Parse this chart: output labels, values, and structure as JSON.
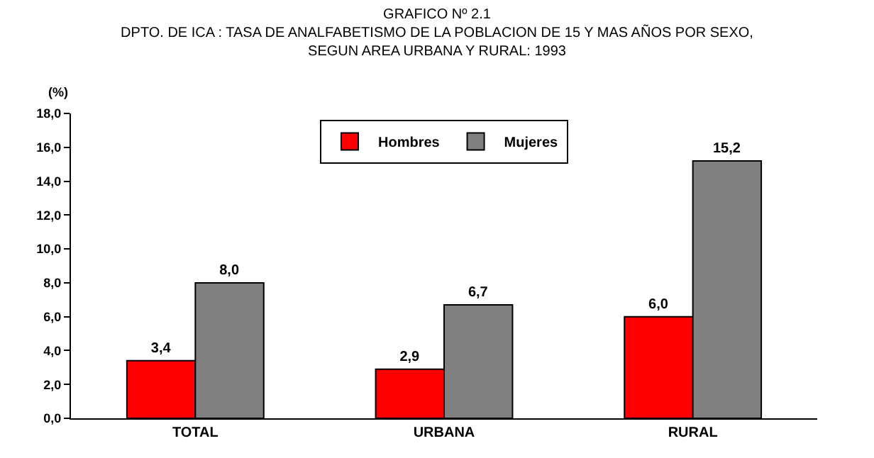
{
  "chart_data": {
    "type": "bar",
    "title": "GRAFICO Nº 2.1\nDPTO. DE ICA : TASA DE ANALFABETISMO DE LA POBLACION DE 15 Y MAS AÑOS POR SEXO,\nSEGUN AREA URBANA Y RURAL: 1993",
    "ylabel": "(%)",
    "categories": [
      "TOTAL",
      "URBANA",
      "RURAL"
    ],
    "series": [
      {
        "name": "Hombres",
        "color": "#ff0000",
        "values": [
          3.4,
          2.9,
          6.0
        ],
        "value_labels": [
          "3,4",
          "2,9",
          "6,0"
        ]
      },
      {
        "name": "Mujeres",
        "color": "#808080",
        "values": [
          8.0,
          6.7,
          15.2
        ],
        "value_labels": [
          "8,0",
          "6,7",
          "15,2"
        ]
      }
    ],
    "ylim": [
      0,
      18
    ],
    "yticks": [
      {
        "value": 0,
        "label": "0,0"
      },
      {
        "value": 2,
        "label": "2,0"
      },
      {
        "value": 4,
        "label": "4,0"
      },
      {
        "value": 6,
        "label": "6,0"
      },
      {
        "value": 8,
        "label": "8,0"
      },
      {
        "value": 10,
        "label": "10,0"
      },
      {
        "value": 12,
        "label": "12,0"
      },
      {
        "value": 14,
        "label": "14,0"
      },
      {
        "value": 16,
        "label": "16,0"
      },
      {
        "value": 18,
        "label": "18,0"
      }
    ],
    "grid": false,
    "legend": "top"
  }
}
